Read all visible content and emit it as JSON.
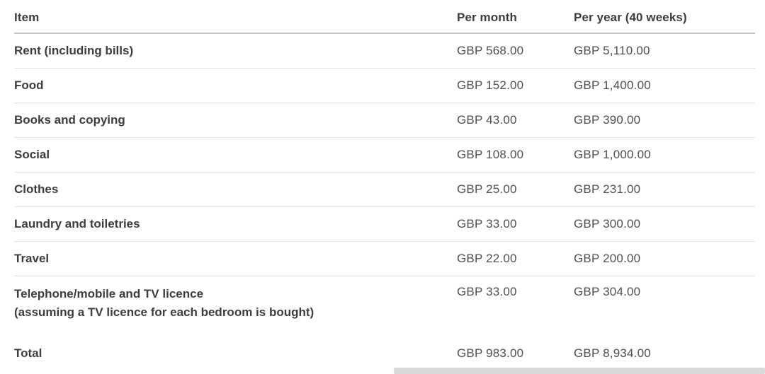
{
  "table": {
    "header": {
      "item": "Item",
      "per_month": "Per month",
      "per_year": "Per year (40 weeks)"
    },
    "rows": [
      {
        "item": "Rent (including bills)",
        "per_month": "GBP 568.00",
        "per_year": "GBP 5,110.00"
      },
      {
        "item": "Food",
        "per_month": "GBP 152.00",
        "per_year": "GBP 1,400.00"
      },
      {
        "item": "Books and copying",
        "per_month": "GBP 43.00",
        "per_year": "GBP 390.00"
      },
      {
        "item": "Social",
        "per_month": "GBP 108.00",
        "per_year": "GBP 1,000.00"
      },
      {
        "item": "Clothes",
        "per_month": "GBP 25.00",
        "per_year": "GBP 231.00"
      },
      {
        "item": "Laundry and toiletries",
        "per_month": "GBP 33.00",
        "per_year": "GBP 300.00"
      },
      {
        "item": "Travel",
        "per_month": "GBP 22.00",
        "per_year": "GBP 200.00"
      },
      {
        "item": "Telephone/mobile and TV licence",
        "note": "(assuming a TV licence for each bedroom is bought)",
        "per_month": "GBP 33.00",
        "per_year": "GBP 304.00"
      },
      {
        "item": "Total",
        "per_month": "GBP 983.00",
        "per_year": "GBP 8,934.00"
      }
    ]
  },
  "colors": {
    "text_strong": "#3d3d3d",
    "text_value": "#4f4f4f",
    "divider": "#e2e2e2",
    "header_divider": "#c7c7c7",
    "scrollbar_thumb": "#d9d9d9",
    "background": "#ffffff"
  }
}
